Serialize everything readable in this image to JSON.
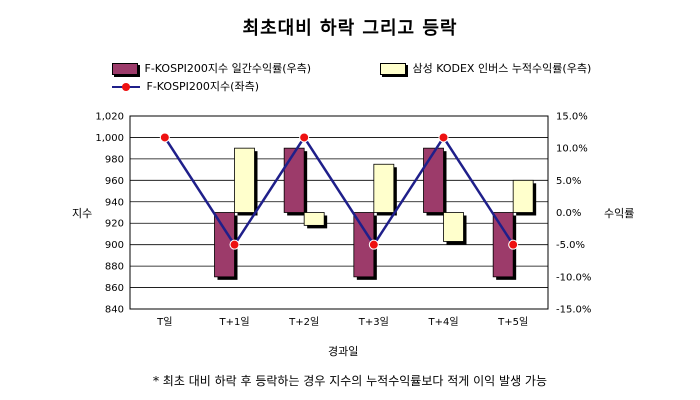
{
  "title": "최초대비 하락 그리고 등락",
  "legend": {
    "bar1": "F-KOSPI200지수 일간수익률(우측)",
    "bar2": "삼성 KODEX 인버스 누적수익률(우측)",
    "line": "F-KOSPI200지수(좌측)"
  },
  "footnote": "* 최초 대비 하락 후 등락하는 경우 지수의 누적수익률보다 적게 이익 발생 가능",
  "chart_data": {
    "type": "bar+line",
    "categories": [
      "T일",
      "T+1일",
      "T+2일",
      "T+3일",
      "T+4일",
      "T+5일"
    ],
    "xlabel": "경과일",
    "ylabel_left": "지수",
    "ylabel_right": "수익률",
    "ylim_left": [
      840,
      1020
    ],
    "yticks_left": [
      840,
      860,
      880,
      900,
      920,
      940,
      960,
      980,
      1000,
      1020
    ],
    "yticklabels_left": [
      "840",
      "860",
      "880",
      "900",
      "920",
      "940",
      "960",
      "980",
      "1,000",
      "1,020"
    ],
    "ylim_right": [
      -15,
      15
    ],
    "yticks_right": [
      -15,
      -10,
      -5,
      0,
      5,
      10,
      15
    ],
    "yticklabels_right": [
      "-15.0%",
      "-10.0%",
      "-5.0%",
      "0.0%",
      "5.0%",
      "10.0%",
      "15.0%"
    ],
    "series": [
      {
        "name": "F-KOSPI200지수 일간수익률(우측)",
        "type": "bar",
        "axis": "right",
        "color": "#9c3b6a",
        "values": [
          null,
          -10,
          10,
          -10,
          10,
          -10
        ]
      },
      {
        "name": "삼성 KODEX 인버스 누적수익률(우측)",
        "type": "bar",
        "axis": "right",
        "color": "#ffffcc",
        "values": [
          null,
          10,
          -2,
          7.5,
          -4.5,
          5
        ]
      },
      {
        "name": "F-KOSPI200지수(좌측)",
        "type": "line",
        "axis": "left",
        "color": "#1f1f8a",
        "marker_color": "#ee1111",
        "values": [
          1000,
          900,
          1000,
          900,
          1000,
          900
        ]
      }
    ],
    "grid": true
  }
}
